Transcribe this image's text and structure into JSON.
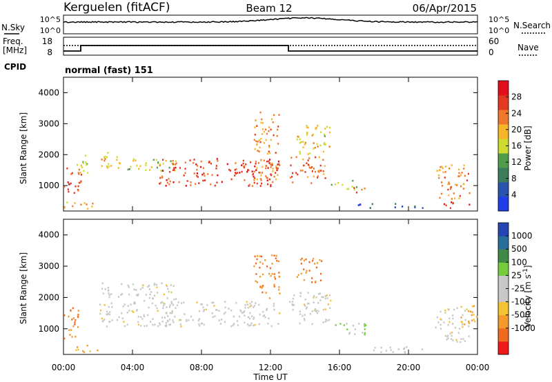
{
  "header": {
    "station": "Kerguelen (fitACF)",
    "beam": "Beam 12",
    "date": "06/Apr/2015"
  },
  "noise_panel": {
    "left_label": "N.Sky",
    "right_label": "N.Search",
    "left_ticks": [
      "10^5",
      "10^0"
    ],
    "right_ticks": [
      "10^5",
      "10^0"
    ]
  },
  "freq_panel": {
    "left_label_top": "Freq.",
    "left_label_bottom": "[MHz]",
    "right_label": "Nave",
    "left_ticks": [
      "18",
      "8"
    ],
    "right_ticks": [
      "60",
      "0"
    ]
  },
  "cpid": {
    "label": "CPID",
    "value": "normal (fast) 151"
  },
  "colors": {
    "power_scale": [
      "#1f3ee6",
      "#2b54b0",
      "#3b7d5a",
      "#4f9d4a",
      "#cddc2e",
      "#f7b52a",
      "#f0782a",
      "#e33920",
      "#e10f1a"
    ],
    "velocity_scale": [
      "#ee1a1a",
      "#f06a20",
      "#f49a2c",
      "#f4c232",
      "#c8c8c8",
      "#c8c8c8",
      "#74cc3c",
      "#3f8a46",
      "#2a6f9a",
      "#2545b5"
    ],
    "ground_scatter": "#c8c8c8"
  },
  "chart_data": [
    {
      "type": "heatmap",
      "name": "power",
      "ylabel": "Slant Range [km]",
      "ylim": [
        180,
        4500
      ],
      "yticks": [
        "1000",
        "2000",
        "3000",
        "4000"
      ],
      "xlim": [
        0,
        24
      ],
      "colorbar": {
        "label": "Power [dB]",
        "range": [
          0,
          32
        ],
        "ticks": [
          "4",
          "8",
          "12",
          "16",
          "20",
          "24",
          "28"
        ]
      },
      "regions": [
        {
          "t": [
            0.0,
            1.0
          ],
          "range": [
            700,
            1700
          ],
          "value": 26
        },
        {
          "t": [
            0.6,
            1.4
          ],
          "range": [
            1300,
            2000
          ],
          "value": 16
        },
        {
          "t": [
            0.0,
            2.0
          ],
          "range": [
            250,
            500
          ],
          "value": 20
        },
        {
          "t": [
            2.0,
            3.5
          ],
          "range": [
            1600,
            2100
          ],
          "value": 18
        },
        {
          "t": [
            3.0,
            6.5
          ],
          "range": [
            1500,
            1900
          ],
          "value": 16
        },
        {
          "t": [
            5.5,
            12.5
          ],
          "range": [
            1000,
            1900
          ],
          "value": 26
        },
        {
          "t": [
            11.0,
            12.5
          ],
          "range": [
            1200,
            3400
          ],
          "value": 22
        },
        {
          "t": [
            13.0,
            15.2
          ],
          "range": [
            1100,
            2000
          ],
          "value": 24
        },
        {
          "t": [
            13.5,
            15.5
          ],
          "range": [
            2000,
            3000
          ],
          "value": 18
        },
        {
          "t": [
            15.5,
            17.0
          ],
          "range": [
            900,
            1200
          ],
          "value": 14
        },
        {
          "t": [
            16.5,
            17.5
          ],
          "range": [
            800,
            1000
          ],
          "value": 24
        },
        {
          "t": [
            17.0,
            21.0
          ],
          "range": [
            300,
            450
          ],
          "value": 6
        },
        {
          "t": [
            21.5,
            23.5
          ],
          "range": [
            600,
            1700
          ],
          "value": 22
        },
        {
          "t": [
            22.0,
            23.5
          ],
          "range": [
            300,
            500
          ],
          "value": 28
        }
      ]
    },
    {
      "type": "heatmap",
      "name": "velocity",
      "ylabel": "Slant Range [km]",
      "xlabel": "Time UT",
      "ylim": [
        180,
        4500
      ],
      "yticks": [
        "1000",
        "2000",
        "3000",
        "4000"
      ],
      "xlim": [
        0,
        24
      ],
      "xticks": [
        "00:00",
        "04:00",
        "08:00",
        "12:00",
        "16:00",
        "20:00",
        "00:00"
      ],
      "colorbar": {
        "label": "Velocity [m s",
        "label_sup": "-1",
        "label_end": "]",
        "ticks": [
          "1000",
          "500",
          "100",
          "25",
          "-25",
          "-100",
          "-500",
          "-1000"
        ]
      },
      "regions": [
        {
          "t": [
            0.0,
            1.0
          ],
          "range": [
            700,
            1700
          ],
          "value": -500
        },
        {
          "t": [
            0.5,
            2.0
          ],
          "range": [
            250,
            500
          ],
          "value": -100
        },
        {
          "t": [
            2.0,
            6.5
          ],
          "range": [
            1100,
            2500
          ],
          "value": 0
        },
        {
          "t": [
            5.5,
            12.5
          ],
          "range": [
            1100,
            1900
          ],
          "value": 0
        },
        {
          "t": [
            11.0,
            12.5
          ],
          "range": [
            2000,
            3400
          ],
          "value": -500
        },
        {
          "t": [
            13.0,
            15.5
          ],
          "range": [
            1100,
            2200
          ],
          "value": 0
        },
        {
          "t": [
            13.5,
            15.0
          ],
          "range": [
            2500,
            3300
          ],
          "value": -500
        },
        {
          "t": [
            15.5,
            17.5
          ],
          "range": [
            800,
            1200
          ],
          "value": 100
        },
        {
          "t": [
            17.5,
            21.0
          ],
          "range": [
            250,
            450
          ],
          "value": 0
        },
        {
          "t": [
            21.5,
            23.5
          ],
          "range": [
            600,
            1700
          ],
          "value": 0
        },
        {
          "t": [
            23.0,
            24.0
          ],
          "range": [
            1000,
            1800
          ],
          "value": -100
        }
      ]
    }
  ]
}
